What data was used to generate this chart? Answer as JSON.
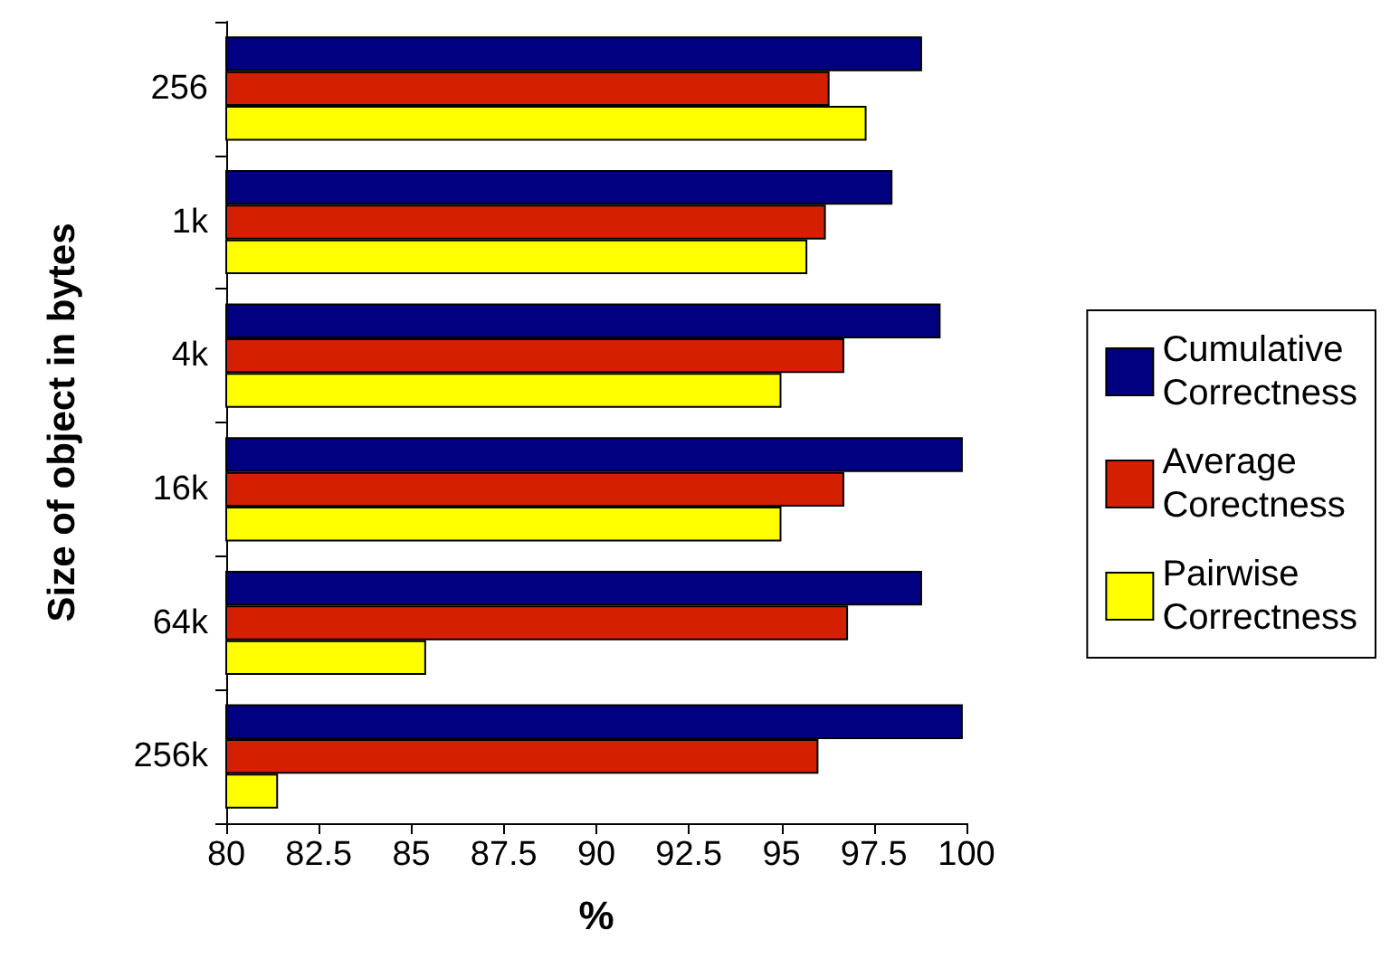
{
  "chart_data": {
    "type": "bar",
    "orientation": "horizontal",
    "xlabel": "%",
    "ylabel": "Size of object in bytes",
    "categories": [
      "256",
      "1k",
      "4k",
      "16k",
      "64k",
      "256k"
    ],
    "series": [
      {
        "name": "Cumulative Correctness",
        "color": "#000080",
        "values": [
          98.8,
          98.0,
          99.3,
          99.9,
          98.8,
          99.9
        ]
      },
      {
        "name": "Average Corectness",
        "color": "#d42000",
        "values": [
          96.3,
          96.2,
          96.7,
          96.7,
          96.8,
          96.0
        ]
      },
      {
        "name": "Pairwise Correctness",
        "color": "#ffff00",
        "values": [
          97.3,
          95.7,
          95.0,
          95.0,
          85.4,
          81.4
        ]
      }
    ],
    "xlim": [
      80,
      100
    ],
    "xticks": [
      80,
      82.5,
      85,
      87.5,
      90,
      92.5,
      95,
      97.5,
      100
    ],
    "grid": false,
    "legend": "right"
  }
}
